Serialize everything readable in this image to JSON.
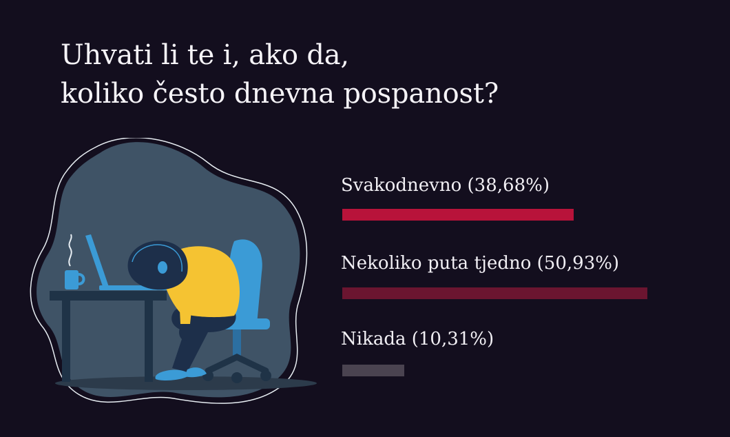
{
  "title_lines": [
    "Uhvati li te i, ako da,",
    "koliko često dnevna pospanost?"
  ],
  "chart_data": {
    "type": "bar",
    "orientation": "horizontal",
    "title": "Uhvati li te i, ako da, koliko često dnevna pospanost?",
    "categories": [
      "Svakodnevno",
      "Nekoliko puta tjedno",
      "Nikada"
    ],
    "values": [
      38.68,
      50.93,
      10.31
    ],
    "labels": [
      "Svakodnevno (38,68%)",
      "Nekoliko puta tjedno (50,93%)",
      "Nikada (10,31%)"
    ],
    "unit": "%",
    "colors": [
      "#b8133a",
      "#6b1530",
      "#4a4350"
    ]
  },
  "colors": {
    "background": "#130e1e",
    "blob": "#3f5366",
    "accent_blue": "#3b9bd6",
    "shirt_yellow": "#f5c332",
    "hair": "#1d2f4a"
  }
}
